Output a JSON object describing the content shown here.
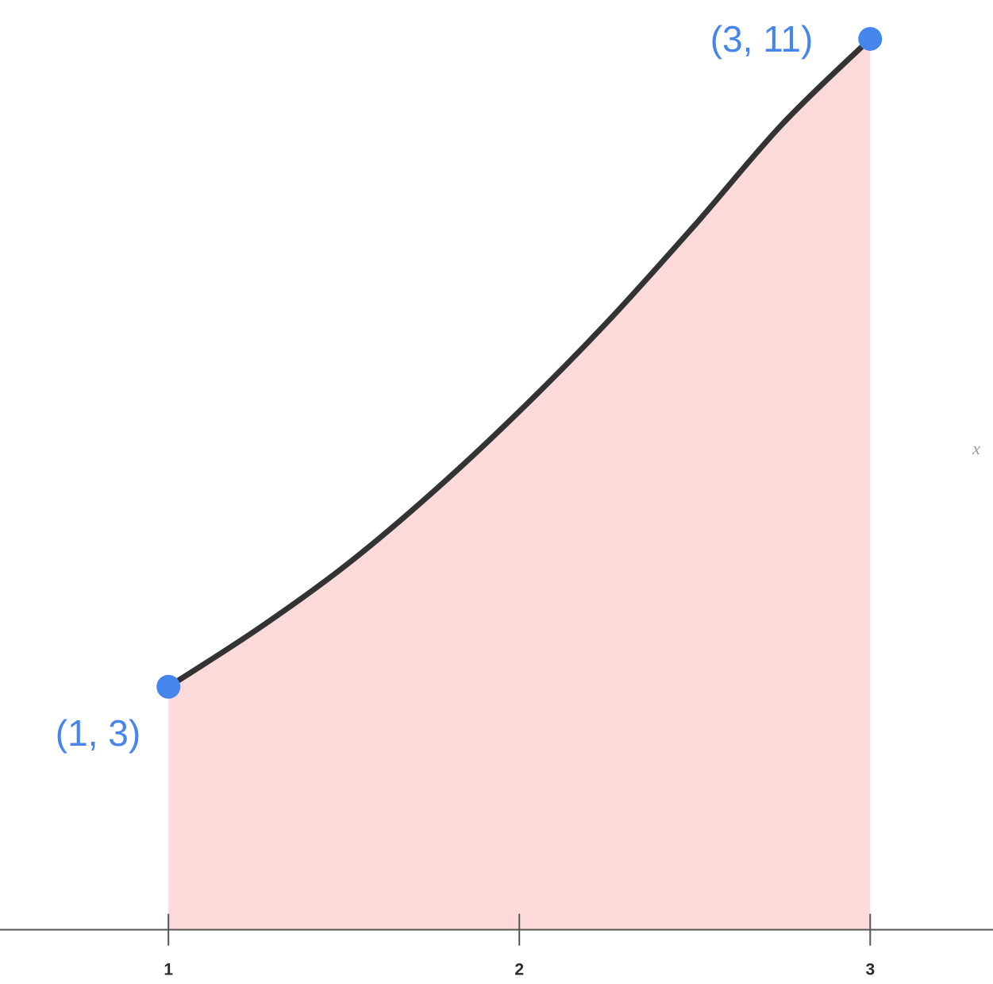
{
  "chart_data": {
    "type": "area",
    "xlabel": "x",
    "ylabel": "",
    "xlim": [
      0.52,
      3.35
    ],
    "ylim": [
      -0.67,
      11.48
    ],
    "x_ticks": [
      1,
      2,
      3
    ],
    "grid": false,
    "legend": "none",
    "series": [
      {
        "curve": [
          {
            "x": 1.0,
            "y": 3.0
          },
          {
            "x": 1.25,
            "y": 3.7
          },
          {
            "x": 1.5,
            "y": 4.48
          },
          {
            "x": 1.75,
            "y": 5.39
          },
          {
            "x": 2.0,
            "y": 6.4
          },
          {
            "x": 2.25,
            "y": 7.5
          },
          {
            "x": 2.5,
            "y": 8.7
          },
          {
            "x": 2.75,
            "y": 9.95
          },
          {
            "x": 3.0,
            "y": 11.0
          }
        ]
      }
    ],
    "shaded_region": {
      "x_from": 1,
      "x_to": 3
    },
    "points": [
      {
        "x": 1,
        "y": 3,
        "label": "(1, 3)"
      },
      {
        "x": 3,
        "y": 11,
        "label": "(3, 11)"
      }
    ],
    "colors": {
      "curve": "#333333",
      "fill": "#fbdad9",
      "points": "#4685ec",
      "axis": "#555555"
    }
  }
}
